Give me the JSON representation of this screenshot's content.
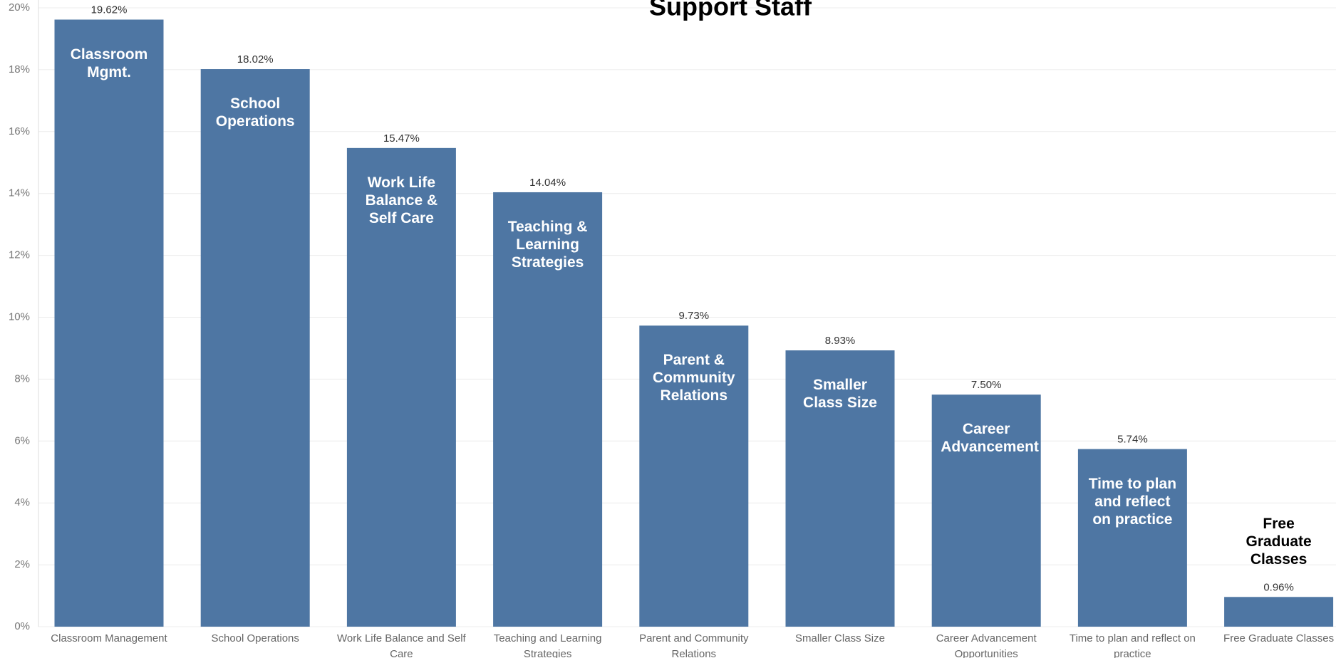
{
  "chart_data": {
    "type": "bar",
    "title": "Support Staff",
    "categories": [
      "Classroom Management",
      "School Operations",
      "Work Life Balance and Self Care",
      "Teaching and Learning Strategies",
      "Parent and Community Relations",
      "Smaller Class Size",
      "Career Advancement Opportunities",
      "Time to plan and reflect on practice",
      "Free Graduate Classes"
    ],
    "values": [
      19.62,
      18.02,
      15.47,
      14.04,
      9.73,
      8.93,
      7.5,
      5.74,
      0.96
    ],
    "value_labels": [
      "19.62%",
      "18.02%",
      "15.47%",
      "14.04%",
      "9.73%",
      "8.93%",
      "7.50%",
      "5.74%",
      "0.96%"
    ],
    "annotations": [
      "Classroom Mgmt.",
      "School Operations",
      "Work Life Balance & Self Care",
      "Teaching & Learning Strategies",
      "Parent & Community Relations",
      "Smaller Class Size",
      "Career Advancement",
      "Time to plan and reflect on practice",
      "Free Graduate Classes"
    ],
    "color": "#4e76a3",
    "ylim": [
      0,
      20
    ],
    "yticks": [
      {
        "value": 0,
        "label": "0%"
      },
      {
        "value": 2,
        "label": "2%"
      },
      {
        "value": 4,
        "label": "4%"
      },
      {
        "value": 6,
        "label": "6%"
      },
      {
        "value": 8,
        "label": "8%"
      },
      {
        "value": 10,
        "label": "10%"
      },
      {
        "value": 12,
        "label": "12%"
      },
      {
        "value": 14,
        "label": "14%"
      },
      {
        "value": 16,
        "label": "16%"
      },
      {
        "value": 18,
        "label": "18%"
      },
      {
        "value": 20,
        "label": "20%"
      }
    ],
    "grid": true
  }
}
